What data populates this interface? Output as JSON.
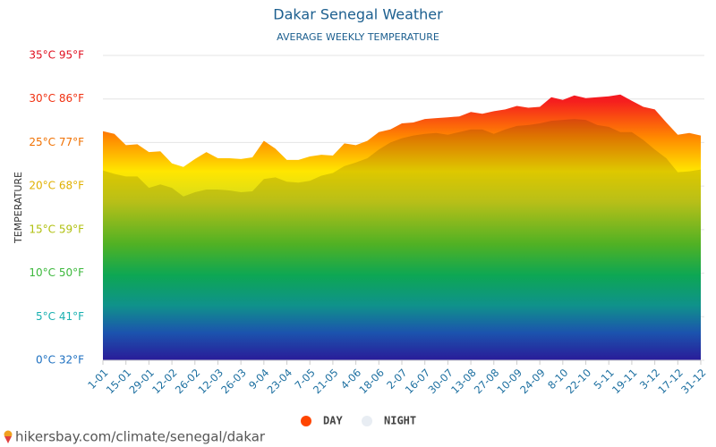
{
  "chart_data": {
    "type": "area",
    "title": "Dakar Senegal Weather",
    "subtitle": "AVERAGE WEEKLY TEMPERATURE",
    "y_label": "TEMPERATURE",
    "watermark": "hikersbay.com/climate/senegal/dakar",
    "categories": [
      "1-01",
      null,
      "15-01",
      null,
      "29-01",
      null,
      "12-02",
      null,
      "26-02",
      null,
      "12-03",
      null,
      "26-03",
      null,
      "9-04",
      null,
      "23-04",
      null,
      "7-05",
      null,
      "21-05",
      null,
      "4-06",
      null,
      "18-06",
      null,
      "2-07",
      null,
      "16-07",
      null,
      "30-07",
      null,
      "13-08",
      null,
      "27-08",
      null,
      "10-09",
      null,
      "24-09",
      null,
      "8-10",
      null,
      "22-10",
      null,
      "5-11",
      null,
      "19-11",
      null,
      "3-12",
      null,
      "17-12",
      null,
      "31-12"
    ],
    "series": [
      {
        "name": "DAY",
        "color": "#ff4500",
        "values": [
          26.3,
          26.0,
          24.7,
          24.8,
          23.9,
          24.0,
          22.6,
          22.2,
          23.1,
          23.9,
          23.2,
          23.2,
          23.1,
          23.3,
          25.2,
          24.3,
          23.0,
          23.0,
          23.4,
          23.6,
          23.5,
          24.9,
          24.7,
          25.2,
          26.2,
          26.5,
          27.2,
          27.3,
          27.7,
          27.8,
          27.9,
          28.0,
          28.5,
          28.3,
          28.6,
          28.8,
          29.2,
          29.0,
          29.1,
          30.2,
          29.9,
          30.4,
          30.1,
          30.2,
          30.3,
          30.5,
          29.8,
          29.1,
          28.8,
          27.3,
          25.9,
          26.1,
          25.8
        ]
      },
      {
        "name": "NIGHT",
        "color": "#e8edf3",
        "values": [
          21.8,
          21.4,
          21.1,
          21.1,
          19.8,
          20.2,
          19.8,
          18.8,
          19.3,
          19.6,
          19.6,
          19.5,
          19.3,
          19.4,
          20.8,
          21.0,
          20.5,
          20.4,
          20.6,
          21.2,
          21.5,
          22.3,
          22.7,
          23.2,
          24.2,
          25.0,
          25.5,
          25.8,
          26.0,
          26.1,
          25.9,
          26.2,
          26.5,
          26.5,
          26.0,
          26.5,
          26.9,
          27.0,
          27.2,
          27.5,
          27.6,
          27.7,
          27.6,
          27.0,
          26.8,
          26.2,
          26.2,
          25.3,
          24.2,
          23.2,
          21.6,
          21.7,
          21.9
        ]
      }
    ],
    "ylim": [
      0,
      35
    ],
    "yticks": [
      {
        "value": 0,
        "label": "0°C 32°F"
      },
      {
        "value": 5,
        "label": "5°C 41°F"
      },
      {
        "value": 10,
        "label": "10°C 50°F"
      },
      {
        "value": 15,
        "label": "15°C 59°F"
      },
      {
        "value": 20,
        "label": "20°C 68°F"
      },
      {
        "value": 25,
        "label": "25°C 77°F"
      },
      {
        "value": 30,
        "label": "30°C 86°F"
      },
      {
        "value": 35,
        "label": "35°C 95°F"
      }
    ],
    "grid": true
  }
}
